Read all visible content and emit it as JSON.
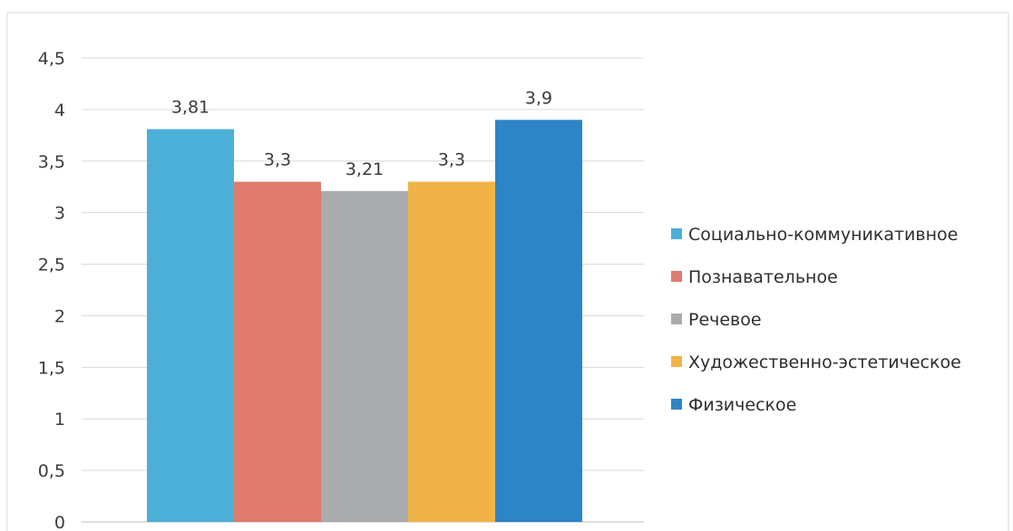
{
  "chart_data": {
    "type": "bar",
    "title": "",
    "xlabel": "",
    "ylabel": "",
    "ylim": [
      0,
      4.5
    ],
    "y_ticks": [
      "0",
      "0,5",
      "1",
      "1,5",
      "2",
      "2,5",
      "3",
      "3,5",
      "4",
      "4,5"
    ],
    "grid": true,
    "legend_position": "right",
    "series": [
      {
        "name": "Социально-коммуникативное",
        "value": 3.81,
        "label": "3,81",
        "color": "#4bafd8"
      },
      {
        "name": "Познавательное",
        "value": 3.3,
        "label": "3,3",
        "color": "#e07b6f"
      },
      {
        "name": "Речевое",
        "value": 3.21,
        "label": "3,21",
        "color": "#a9abad"
      },
      {
        "name": "Художественно-эстетическое",
        "value": 3.3,
        "label": "3,3",
        "color": "#f0b347"
      },
      {
        "name": "Физическое",
        "value": 3.9,
        "label": "3,9",
        "color": "#2d84c6"
      }
    ]
  }
}
